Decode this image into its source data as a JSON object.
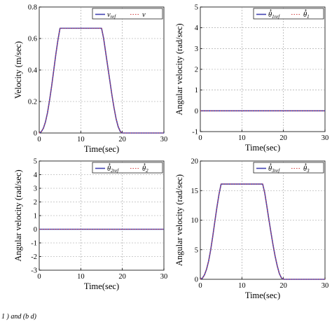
{
  "caption": "1 ) and (b d)",
  "chart_data": [
    {
      "type": "line",
      "xlabel": "Time(sec)",
      "ylabel": "Velocity (m/sec)",
      "xlim": [
        0,
        30
      ],
      "ylim": [
        0,
        0.8
      ],
      "xticks": [
        "0",
        "10",
        "20",
        "30"
      ],
      "yticks": [
        "0",
        "0.2",
        "0.4",
        "0.6",
        "0.8"
      ],
      "grid": true,
      "legend": "top-right",
      "series": [
        {
          "name": "v_ref",
          "color": "#4040b0",
          "style": "solid",
          "x": [
            0,
            0.5,
            1,
            1.5,
            2,
            2.5,
            3,
            3.5,
            4,
            4.5,
            5,
            15,
            15.5,
            16,
            16.5,
            17,
            17.5,
            18,
            18.5,
            19,
            19.5,
            20,
            30
          ],
          "y": [
            0,
            0.008,
            0.03,
            0.07,
            0.13,
            0.21,
            0.3,
            0.4,
            0.5,
            0.59,
            0.665,
            0.665,
            0.6,
            0.51,
            0.42,
            0.33,
            0.24,
            0.16,
            0.09,
            0.04,
            0.01,
            0,
            0
          ]
        },
        {
          "name": "v",
          "color": "#d04040",
          "style": "dotted",
          "x": [
            0,
            0.5,
            1,
            1.5,
            2,
            2.5,
            3,
            3.5,
            4,
            4.5,
            5,
            15,
            15.5,
            16,
            16.5,
            17,
            17.5,
            18,
            18.5,
            19,
            19.5,
            20,
            30
          ],
          "y": [
            0,
            0.008,
            0.03,
            0.07,
            0.13,
            0.21,
            0.3,
            0.4,
            0.5,
            0.59,
            0.665,
            0.665,
            0.6,
            0.51,
            0.42,
            0.33,
            0.24,
            0.16,
            0.09,
            0.04,
            0.01,
            0,
            0
          ]
        }
      ],
      "legend_labels": [
        {
          "base": "v",
          "sub": "ref",
          "dot": false
        },
        {
          "base": "v",
          "sub": "",
          "dot": false
        }
      ]
    },
    {
      "type": "line",
      "xlabel": "Time(sec)",
      "ylabel": "Angular velocity  (rad/sec)",
      "xlim": [
        0,
        30
      ],
      "ylim": [
        -1,
        5
      ],
      "xticks": [
        "0",
        "10",
        "20",
        "30"
      ],
      "yticks": [
        "-1",
        "0",
        "1",
        "2",
        "3",
        "4",
        "5"
      ],
      "grid": true,
      "legend": "top-right",
      "series": [
        {
          "name": "theta1_ref",
          "color": "#4040b0",
          "style": "solid",
          "x": [
            0,
            30
          ],
          "y": [
            0,
            0
          ]
        },
        {
          "name": "theta1",
          "color": "#d04040",
          "style": "dotted",
          "x": [
            0,
            30
          ],
          "y": [
            0,
            0
          ]
        }
      ],
      "legend_labels": [
        {
          "base": "θ",
          "sub": "1ref",
          "dot": true
        },
        {
          "base": "θ",
          "sub": "1",
          "dot": true
        }
      ]
    },
    {
      "type": "line",
      "xlabel": "Time(sec)",
      "ylabel": "Angular velocity  (rad/sec)",
      "xlim": [
        0,
        30
      ],
      "ylim": [
        -3,
        5
      ],
      "xticks": [
        "0",
        "10",
        "20",
        "30"
      ],
      "yticks": [
        "-3",
        "-2",
        "-1",
        "0",
        "1",
        "2",
        "3",
        "4",
        "5"
      ],
      "grid": true,
      "legend": "top-right",
      "series": [
        {
          "name": "theta2_ref",
          "color": "#4040b0",
          "style": "solid",
          "x": [
            0,
            30
          ],
          "y": [
            0,
            0
          ]
        },
        {
          "name": "theta2",
          "color": "#d04040",
          "style": "dotted",
          "x": [
            0,
            30
          ],
          "y": [
            0,
            0
          ]
        }
      ],
      "legend_labels": [
        {
          "base": "θ",
          "sub": "2ref",
          "dot": true
        },
        {
          "base": "θ",
          "sub": "2",
          "dot": true
        }
      ]
    },
    {
      "type": "line",
      "xlabel": "Time(sec)",
      "ylabel": "Angular velocity  (rad/sec)",
      "xlim": [
        0,
        30
      ],
      "ylim": [
        0,
        20
      ],
      "xticks": [
        "0",
        "10",
        "20",
        "30"
      ],
      "yticks": [
        "0",
        "5",
        "10",
        "15",
        "20"
      ],
      "grid": true,
      "legend": "top-right",
      "series": [
        {
          "name": "theta3_ref",
          "color": "#4040b0",
          "style": "solid",
          "x": [
            0,
            0.5,
            1,
            1.5,
            2,
            2.5,
            3,
            3.5,
            4,
            4.5,
            5,
            15,
            15.5,
            16,
            16.5,
            17,
            17.5,
            18,
            18.5,
            19,
            19.5,
            20,
            30
          ],
          "y": [
            0,
            0.2,
            0.75,
            1.7,
            3.1,
            5.0,
            7.3,
            9.8,
            12.2,
            14.4,
            16.1,
            16.1,
            14.6,
            12.4,
            10.1,
            7.9,
            5.8,
            3.9,
            2.3,
            1.0,
            0.25,
            0,
            0
          ]
        },
        {
          "name": "theta3",
          "color": "#d04040",
          "style": "dotted",
          "x": [
            0,
            0.5,
            1,
            1.5,
            2,
            2.5,
            3,
            3.5,
            4,
            4.5,
            5,
            15,
            15.5,
            16,
            16.5,
            17,
            17.5,
            18,
            18.5,
            19,
            19.5,
            20,
            30
          ],
          "y": [
            0,
            0.2,
            0.75,
            1.7,
            3.1,
            5.0,
            7.3,
            9.8,
            12.2,
            14.4,
            16.1,
            16.1,
            14.6,
            12.4,
            10.1,
            7.9,
            5.8,
            3.9,
            2.3,
            1.0,
            0.25,
            0,
            0
          ]
        }
      ],
      "legend_labels": [
        {
          "base": "θ",
          "sub": "3ref",
          "dot": true
        },
        {
          "base": "θ",
          "sub": "3",
          "dot": true
        }
      ]
    }
  ]
}
